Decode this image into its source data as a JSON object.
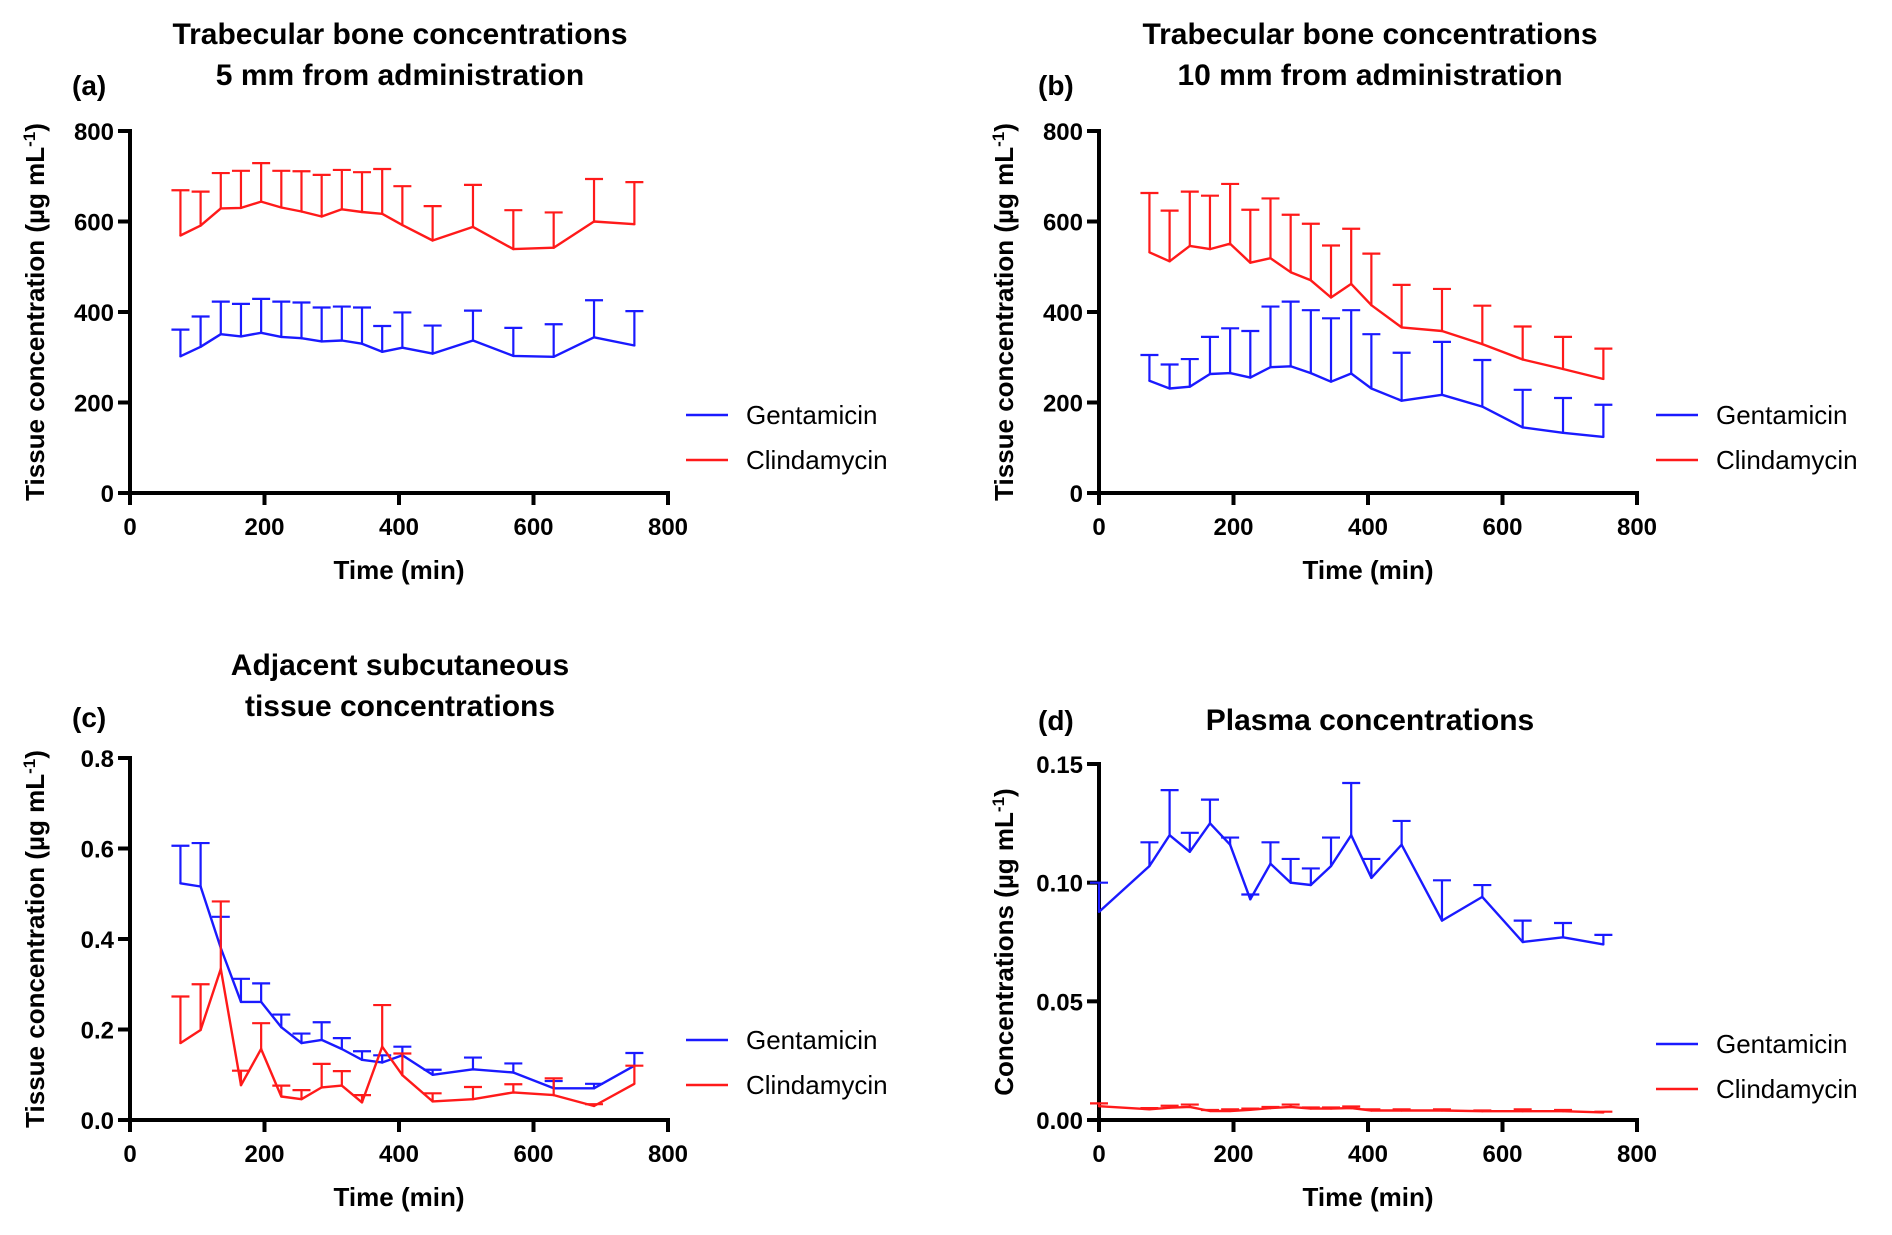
{
  "chart_data": [
    {
      "panel": "(a)",
      "type": "line",
      "title": [
        "Trabecular bone concentrations",
        "5 mm from administration"
      ],
      "xlabel": "Time (min)",
      "ylabel": "Tissue concentration (µg mL",
      "ylabel_sup": "-1",
      "ylabel_end": ")",
      "xlim": [
        0,
        800
      ],
      "ylim": [
        0,
        800
      ],
      "xticks": [
        0,
        200,
        400,
        600,
        800
      ],
      "yticks": [
        0,
        200,
        400,
        600,
        800
      ],
      "ytick_labels": [
        "0",
        "200",
        "400",
        "600",
        "800"
      ],
      "xtick_labels": [
        "0",
        "200",
        "400",
        "600",
        "800"
      ],
      "grid": false,
      "legend": "right",
      "error_bars": "upper SD",
      "series": [
        {
          "name": "Gentamicin",
          "color": "#1a1aff",
          "x": [
            75,
            105,
            135,
            165,
            195,
            225,
            255,
            285,
            315,
            345,
            375,
            405,
            450,
            510,
            570,
            630,
            690,
            750
          ],
          "y": [
            302,
            323,
            351,
            346,
            354,
            345,
            342,
            335,
            337,
            330,
            312,
            321,
            308,
            337,
            303,
            301,
            344,
            326
          ],
          "err_top": [
            361,
            390,
            423,
            418,
            429,
            423,
            421,
            410,
            412,
            410,
            369,
            399,
            370,
            403,
            365,
            373,
            426,
            402
          ]
        },
        {
          "name": "Clindamycin",
          "color": "#ff1a1a",
          "x": [
            75,
            105,
            135,
            165,
            195,
            225,
            255,
            285,
            315,
            345,
            375,
            405,
            450,
            510,
            570,
            630,
            690,
            750
          ],
          "y": [
            569,
            591,
            629,
            630,
            644,
            631,
            622,
            611,
            627,
            621,
            617,
            592,
            558,
            588,
            539,
            542,
            600,
            594
          ],
          "err_top": [
            669,
            666,
            707,
            712,
            729,
            712,
            711,
            703,
            714,
            709,
            716,
            678,
            634,
            681,
            625,
            620,
            694,
            687
          ]
        }
      ]
    },
    {
      "panel": "(b)",
      "type": "line",
      "title": [
        "Trabecular bone concentrations",
        "10 mm from administration"
      ],
      "xlabel": "Time (min)",
      "ylabel": "Tissue concentration (µg mL",
      "ylabel_sup": "-1",
      "ylabel_end": ")",
      "xlim": [
        0,
        800
      ],
      "ylim": [
        0,
        800
      ],
      "xticks": [
        0,
        200,
        400,
        600,
        800
      ],
      "yticks": [
        0,
        200,
        400,
        600,
        800
      ],
      "ytick_labels": [
        "0",
        "200",
        "400",
        "600",
        "800"
      ],
      "xtick_labels": [
        "0",
        "200",
        "400",
        "600",
        "800"
      ],
      "grid": false,
      "legend": "right",
      "error_bars": "upper SD",
      "series": [
        {
          "name": "Gentamicin",
          "color": "#1a1aff",
          "x": [
            75,
            105,
            135,
            165,
            195,
            225,
            255,
            285,
            315,
            345,
            375,
            405,
            450,
            510,
            570,
            630,
            690,
            750
          ],
          "y": [
            248,
            231,
            235,
            263,
            265,
            255,
            278,
            280,
            265,
            246,
            264,
            231,
            204,
            217,
            191,
            145,
            133,
            124
          ],
          "err_top": [
            305,
            284,
            296,
            345,
            364,
            358,
            412,
            423,
            404,
            386,
            404,
            351,
            310,
            334,
            294,
            228,
            210,
            195
          ]
        },
        {
          "name": "Clindamycin",
          "color": "#ff1a1a",
          "x": [
            75,
            105,
            135,
            165,
            195,
            225,
            255,
            285,
            315,
            345,
            375,
            405,
            450,
            510,
            570,
            630,
            690,
            750
          ],
          "y": [
            532,
            512,
            546,
            539,
            551,
            509,
            519,
            488,
            470,
            432,
            462,
            415,
            366,
            358,
            329,
            295,
            274,
            252
          ],
          "err_top": [
            663,
            624,
            666,
            657,
            683,
            626,
            651,
            615,
            595,
            547,
            584,
            529,
            460,
            451,
            414,
            368,
            345,
            319
          ]
        }
      ]
    },
    {
      "panel": "(c)",
      "type": "line",
      "title": [
        "Adjacent subcutaneous",
        "tissue concentrations"
      ],
      "xlabel": "Time (min)",
      "ylabel": "Tissue concentration (µg mL",
      "ylabel_sup": "-1",
      "ylabel_end": ")",
      "xlim": [
        0,
        800
      ],
      "ylim": [
        0,
        0.8
      ],
      "xticks": [
        0,
        200,
        400,
        600,
        800
      ],
      "yticks": [
        0,
        0.2,
        0.4,
        0.6,
        0.8
      ],
      "ytick_labels": [
        "0.0",
        "0.2",
        "0.4",
        "0.6",
        "0.8"
      ],
      "xtick_labels": [
        "0",
        "200",
        "400",
        "600",
        "800"
      ],
      "grid": false,
      "legend": "right",
      "error_bars": "upper SD",
      "series": [
        {
          "name": "Gentamicin",
          "color": "#1a1aff",
          "x": [
            75,
            105,
            135,
            165,
            195,
            225,
            255,
            285,
            315,
            345,
            375,
            405,
            450,
            510,
            570,
            630,
            690,
            750
          ],
          "y": [
            0.523,
            0.516,
            0.38,
            0.261,
            0.261,
            0.205,
            0.17,
            0.177,
            0.157,
            0.133,
            0.127,
            0.143,
            0.1,
            0.112,
            0.105,
            0.07,
            0.07,
            0.12
          ],
          "err_top": [
            0.606,
            0.612,
            0.449,
            0.312,
            0.302,
            0.233,
            0.191,
            0.216,
            0.181,
            0.152,
            0.143,
            0.162,
            0.111,
            0.138,
            0.125,
            0.086,
            0.08,
            0.148
          ]
        },
        {
          "name": "Clindamycin",
          "color": "#ff1a1a",
          "x": [
            75,
            105,
            135,
            165,
            195,
            225,
            255,
            285,
            315,
            345,
            375,
            405,
            450,
            510,
            570,
            630,
            690,
            750
          ],
          "y": [
            0.17,
            0.199,
            0.334,
            0.077,
            0.157,
            0.052,
            0.046,
            0.072,
            0.076,
            0.039,
            0.162,
            0.099,
            0.041,
            0.046,
            0.061,
            0.055,
            0.031,
            0.08
          ],
          "err_top": [
            0.273,
            0.3,
            0.483,
            0.109,
            0.214,
            0.076,
            0.066,
            0.124,
            0.108,
            0.055,
            0.254,
            0.147,
            0.059,
            0.073,
            0.079,
            0.092,
            0.035,
            0.12
          ]
        }
      ]
    },
    {
      "panel": "(d)",
      "type": "line",
      "title": [
        "Plasma concentrations"
      ],
      "xlabel": "Time (min)",
      "ylabel": "Concentrations (µg mL",
      "ylabel_sup": "-1",
      "ylabel_end": ")",
      "xlim": [
        0,
        800
      ],
      "ylim": [
        0,
        0.15
      ],
      "xticks": [
        0,
        200,
        400,
        600,
        800
      ],
      "yticks": [
        0,
        0.05,
        0.1,
        0.15
      ],
      "ytick_labels": [
        "0.00",
        "0.05",
        "0.10",
        "0.15"
      ],
      "xtick_labels": [
        "0",
        "200",
        "400",
        "600",
        "800"
      ],
      "grid": false,
      "legend": "right",
      "error_bars": "upper SD",
      "series": [
        {
          "name": "Gentamicin",
          "color": "#1a1aff",
          "x": [
            0,
            75,
            105,
            135,
            165,
            195,
            225,
            255,
            285,
            315,
            345,
            375,
            405,
            450,
            510,
            570,
            630,
            690,
            750
          ],
          "y": [
            0.0877,
            0.107,
            0.12,
            0.113,
            0.125,
            0.116,
            0.093,
            0.108,
            0.1,
            0.099,
            0.107,
            0.12,
            0.102,
            0.116,
            0.084,
            0.094,
            0.075,
            0.077,
            0.074
          ],
          "err_top": [
            0.1,
            0.117,
            0.139,
            0.121,
            0.135,
            0.119,
            0.095,
            0.117,
            0.11,
            0.106,
            0.119,
            0.142,
            0.11,
            0.126,
            0.101,
            0.099,
            0.084,
            0.083,
            0.078
          ]
        },
        {
          "name": "Clindamycin",
          "color": "#ff1a1a",
          "x": [
            0,
            75,
            105,
            135,
            165,
            195,
            225,
            255,
            285,
            315,
            345,
            375,
            405,
            450,
            510,
            570,
            630,
            690,
            750
          ],
          "y": [
            0.0058,
            0.0045,
            0.0052,
            0.0055,
            0.0038,
            0.0038,
            0.0043,
            0.005,
            0.0055,
            0.0048,
            0.0048,
            0.005,
            0.004,
            0.004,
            0.004,
            0.0037,
            0.0037,
            0.0037,
            0.0032
          ],
          "err_top": [
            0.007,
            0.005,
            0.006,
            0.0065,
            0.0042,
            0.0045,
            0.0048,
            0.0055,
            0.0065,
            0.0053,
            0.0053,
            0.0057,
            0.0045,
            0.0045,
            0.0045,
            0.004,
            0.0045,
            0.0042,
            0.0035
          ]
        }
      ]
    }
  ]
}
